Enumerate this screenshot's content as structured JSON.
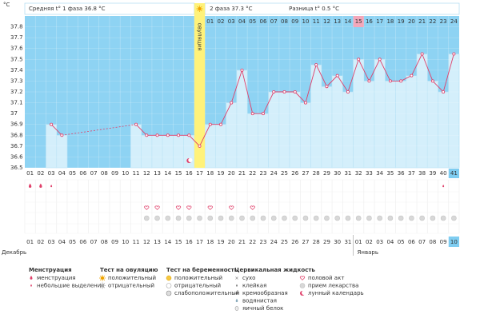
{
  "header": {
    "phase1": "Средняя t° 1 фаза 36.8 °C",
    "phase2": "2 фаза 37.3 °C",
    "difference": "Разница t° 0.5 °C"
  },
  "chart_data": {
    "type": "line",
    "y_label": "°C",
    "categories": [
      "01",
      "02",
      "03",
      "04",
      "05",
      "06",
      "07",
      "08",
      "09",
      "10",
      "11",
      "12",
      "13",
      "14",
      "15",
      "16",
      "17",
      "18",
      "19",
      "20",
      "21",
      "22",
      "23",
      "24",
      "25",
      "26",
      "27",
      "28",
      "29",
      "30",
      "31",
      "32",
      "33",
      "34",
      "35",
      "36",
      "37",
      "38",
      "39",
      "40",
      "41"
    ],
    "values": [
      null,
      null,
      36.9,
      36.8,
      null,
      null,
      null,
      null,
      null,
      null,
      36.9,
      36.8,
      36.8,
      36.8,
      36.8,
      36.8,
      36.7,
      36.9,
      36.9,
      37.1,
      37.4,
      37.0,
      37.0,
      37.2,
      37.2,
      37.2,
      37.1,
      37.45,
      37.25,
      37.35,
      37.2,
      37.5,
      37.3,
      37.5,
      37.3,
      37.3,
      37.35,
      37.55,
      37.3,
      37.2,
      37.55
    ],
    "color": "#e0406a",
    "ylim": [
      36.5,
      37.9
    ],
    "yticks": [
      36.5,
      36.6,
      36.7,
      36.8,
      36.9,
      37,
      37.1,
      37.2,
      37.3,
      37.4,
      37.5,
      37.6,
      37.7,
      37.8
    ],
    "grid": true,
    "cycle_days": [
      "01",
      "02",
      "03",
      "04",
      "05",
      "06",
      "07",
      "08",
      "09",
      "10",
      "11",
      "12",
      "13",
      "14",
      "15",
      "16",
      "17",
      "18",
      "19",
      "20",
      "21",
      "22",
      "23",
      "24"
    ],
    "highlight_index": 14,
    "ovulation": {
      "index": 16,
      "label": "овуляция",
      "color": "#fff27a"
    }
  },
  "calendar": {
    "dates": [
      {
        "label": "01",
        "holiday": true
      },
      {
        "label": "02",
        "holiday": true
      },
      {
        "label": "03",
        "holiday": false
      },
      {
        "label": "04",
        "holiday": false
      },
      {
        "label": "05",
        "holiday": false
      },
      {
        "label": "06",
        "holiday": false
      },
      {
        "label": "07",
        "holiday": false
      },
      {
        "label": "08",
        "holiday": true
      },
      {
        "label": "09",
        "holiday": true
      },
      {
        "label": "10",
        "holiday": false
      },
      {
        "label": "11",
        "holiday": false
      },
      {
        "label": "12",
        "holiday": false
      },
      {
        "label": "13",
        "holiday": false
      },
      {
        "label": "14",
        "holiday": false
      },
      {
        "label": "15",
        "holiday": true
      },
      {
        "label": "16",
        "holiday": true
      },
      {
        "label": "17",
        "holiday": false
      },
      {
        "label": "18",
        "holiday": false
      },
      {
        "label": "19",
        "holiday": false
      },
      {
        "label": "20",
        "holiday": false
      },
      {
        "label": "21",
        "holiday": false
      },
      {
        "label": "22",
        "holiday": true
      },
      {
        "label": "23",
        "holiday": true
      },
      {
        "label": "24",
        "holiday": false
      },
      {
        "label": "25",
        "holiday": false
      },
      {
        "label": "26",
        "holiday": false
      },
      {
        "label": "27",
        "holiday": false
      },
      {
        "label": "28",
        "holiday": false
      },
      {
        "label": "29",
        "holiday": true
      },
      {
        "label": "30",
        "holiday": true
      },
      {
        "label": "31",
        "holiday": true
      },
      {
        "label": "01",
        "holiday": false
      },
      {
        "label": "02",
        "holiday": false
      },
      {
        "label": "03",
        "holiday": false
      },
      {
        "label": "04",
        "holiday": false
      },
      {
        "label": "05",
        "holiday": true
      },
      {
        "label": "06",
        "holiday": true
      },
      {
        "label": "07",
        "holiday": false
      },
      {
        "label": "08",
        "holiday": false
      },
      {
        "label": "09",
        "holiday": false
      },
      {
        "label": "10",
        "holiday": false
      }
    ],
    "months": [
      {
        "label": "Декабрь",
        "start": 0
      },
      {
        "label": "Январь",
        "start": 31
      }
    ],
    "menstruation_days": [
      0,
      1
    ],
    "spotting_days": [
      2,
      39
    ],
    "intercourse_days": [
      11,
      12,
      14,
      15,
      17,
      19,
      21
    ],
    "medicine_days": [
      11,
      12,
      13,
      14,
      15,
      16,
      17,
      18,
      19,
      20,
      21,
      22,
      23,
      24,
      25,
      26,
      27,
      28,
      29,
      30,
      31,
      32,
      33,
      34,
      35,
      36,
      37,
      38,
      39,
      40
    ],
    "lunar_days": [
      15
    ]
  },
  "legend": [
    {
      "title": "Менструация",
      "items": [
        "менструация",
        "небольшие выделения"
      ]
    },
    {
      "title": "Тест на овуляцию",
      "items": [
        "положительный",
        "отрицательный"
      ]
    },
    {
      "title": "Тест на беременность",
      "items": [
        "положительный",
        "отрицательный",
        "слабоположительный"
      ]
    },
    {
      "title": "Цервикальная жидкость",
      "items": [
        "сухо",
        "клейкая",
        "кремообразная",
        "водянистая",
        "яичный белок"
      ]
    },
    {
      "items": [
        "половой акт",
        "прием лекарства",
        "лунный календарь"
      ]
    }
  ]
}
